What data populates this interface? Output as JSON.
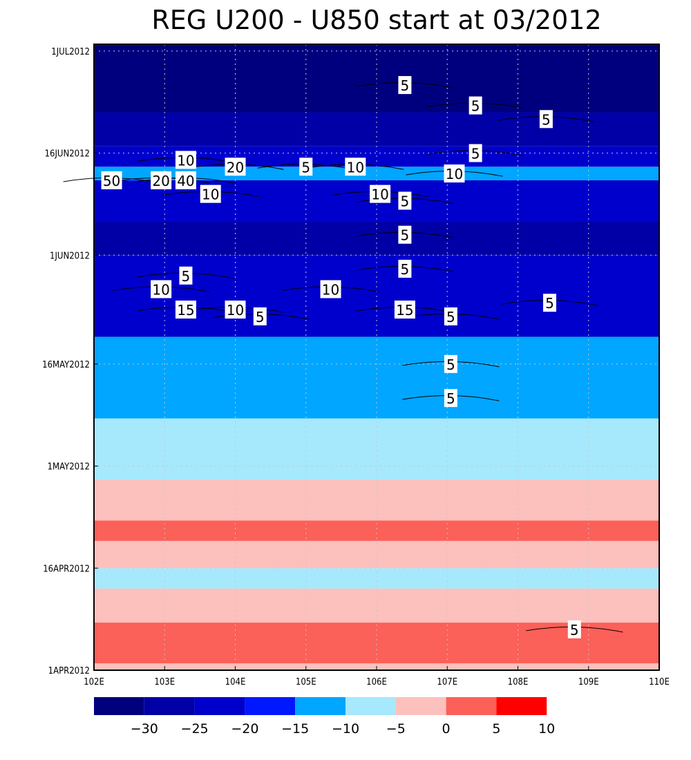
{
  "chart_data": {
    "type": "heatmap",
    "title": "REG U200 - U850 start at 03/2012",
    "x_ticks": [
      "102E",
      "103E",
      "104E",
      "105E",
      "106E",
      "107E",
      "108E",
      "109E",
      "110E"
    ],
    "y_ticks": [
      "1APR2012",
      "16APR2012",
      "1MAY2012",
      "16MAY2012",
      "1JUN2012",
      "16JUN2012",
      "1JUL2012"
    ],
    "xlim": [
      102,
      110
    ],
    "ylim_days": [
      "1APR2012",
      "2JUL2012"
    ],
    "grid": true,
    "colorbar": {
      "position": "bottom",
      "levels": [
        -30,
        -25,
        -20,
        -15,
        -10,
        -5,
        0,
        5,
        10
      ],
      "labels": [
        "-30",
        "-25",
        "-20",
        "-15",
        "-10",
        "-5",
        "0",
        "5",
        "10"
      ],
      "colors": [
        "#00007f",
        "#0000a6",
        "#0000cc",
        "#0018ff",
        "#00a6ff",
        "#a6e8fc",
        "#fcc0bd",
        "#fb6059",
        "#ff0000"
      ]
    },
    "bands": [
      {
        "from": "1APR2012",
        "to": "2APR2012",
        "value_class": "0 to 5"
      },
      {
        "from": "2APR2012",
        "to": "8APR2012",
        "value_class": "5 to 10"
      },
      {
        "from": "8APR2012",
        "to": "13APR2012",
        "value_class": "0 to 5"
      },
      {
        "from": "13APR2012",
        "to": "16APR2012",
        "value_class": "-5 to 0"
      },
      {
        "from": "16APR2012",
        "to": "20APR2012",
        "value_class": "0 to 5"
      },
      {
        "from": "20APR2012",
        "to": "23APR2012",
        "value_class": "5 to 10"
      },
      {
        "from": "23APR2012",
        "to": "29APR2012",
        "value_class": "0 to 5"
      },
      {
        "from": "29APR2012",
        "to": "8MAY2012",
        "value_class": "-5 to 0"
      },
      {
        "from": "8MAY2012",
        "to": "20MAY2012",
        "value_class": "-10 to -5"
      },
      {
        "from": "20MAY2012",
        "to": "1JUN2012",
        "value_class": "-20 to -15"
      },
      {
        "from": "1JUN2012",
        "to": "6JUN2012",
        "value_class": "-25 to -20"
      },
      {
        "from": "6JUN2012",
        "to": "12JUN2012",
        "value_class": "-20 to -15"
      },
      {
        "from": "12JUN2012",
        "to": "14JUN2012",
        "value_class": "-10 to -5"
      },
      {
        "from": "14JUN2012",
        "to": "17JUN2012",
        "value_class": "-20 to -15"
      },
      {
        "from": "17JUN2012",
        "to": "22JUN2012",
        "value_class": "-25 to -20"
      },
      {
        "from": "22JUN2012",
        "to": "2JUL2012",
        "value_class": "-30 and below"
      }
    ],
    "contour_labels": [
      {
        "text": "5",
        "lon": 106.4,
        "date": "26JUN2012"
      },
      {
        "text": "5",
        "lon": 107.4,
        "date": "23JUN2012"
      },
      {
        "text": "5",
        "lon": 108.4,
        "date": "21JUN2012"
      },
      {
        "text": "5",
        "lon": 107.4,
        "date": "16JUN2012"
      },
      {
        "text": "10",
        "lon": 103.3,
        "date": "15JUN2012"
      },
      {
        "text": "20",
        "lon": 104.0,
        "date": "14JUN2012"
      },
      {
        "text": "5",
        "lon": 105.0,
        "date": "14JUN2012"
      },
      {
        "text": "10",
        "lon": 105.7,
        "date": "14JUN2012"
      },
      {
        "text": "10",
        "lon": 107.1,
        "date": "13JUN2012"
      },
      {
        "text": "50",
        "lon": 102.25,
        "date": "12JUN2012"
      },
      {
        "text": "20",
        "lon": 102.95,
        "date": "12JUN2012"
      },
      {
        "text": "40",
        "lon": 103.3,
        "date": "12JUN2012"
      },
      {
        "text": "10",
        "lon": 103.65,
        "date": "10JUN2012"
      },
      {
        "text": "10",
        "lon": 106.05,
        "date": "10JUN2012"
      },
      {
        "text": "5",
        "lon": 106.4,
        "date": "9JUN2012"
      },
      {
        "text": "5",
        "lon": 106.4,
        "date": "4JUN2012"
      },
      {
        "text": "5",
        "lon": 106.4,
        "date": "30MAY2012"
      },
      {
        "text": "5",
        "lon": 103.3,
        "date": "29MAY2012"
      },
      {
        "text": "10",
        "lon": 102.95,
        "date": "27MAY2012"
      },
      {
        "text": "10",
        "lon": 105.35,
        "date": "27MAY2012"
      },
      {
        "text": "15",
        "lon": 103.3,
        "date": "24MAY2012"
      },
      {
        "text": "10",
        "lon": 104.0,
        "date": "24MAY2012"
      },
      {
        "text": "5",
        "lon": 104.35,
        "date": "23MAY2012"
      },
      {
        "text": "15",
        "lon": 106.4,
        "date": "24MAY2012"
      },
      {
        "text": "5",
        "lon": 108.45,
        "date": "25MAY2012"
      },
      {
        "text": "5",
        "lon": 107.05,
        "date": "23MAY2012"
      },
      {
        "text": "5",
        "lon": 107.05,
        "date": "16MAY2012"
      },
      {
        "text": "5",
        "lon": 107.05,
        "date": "11MAY2012"
      },
      {
        "text": "5",
        "lon": 108.8,
        "date": "7APR2012"
      }
    ]
  }
}
